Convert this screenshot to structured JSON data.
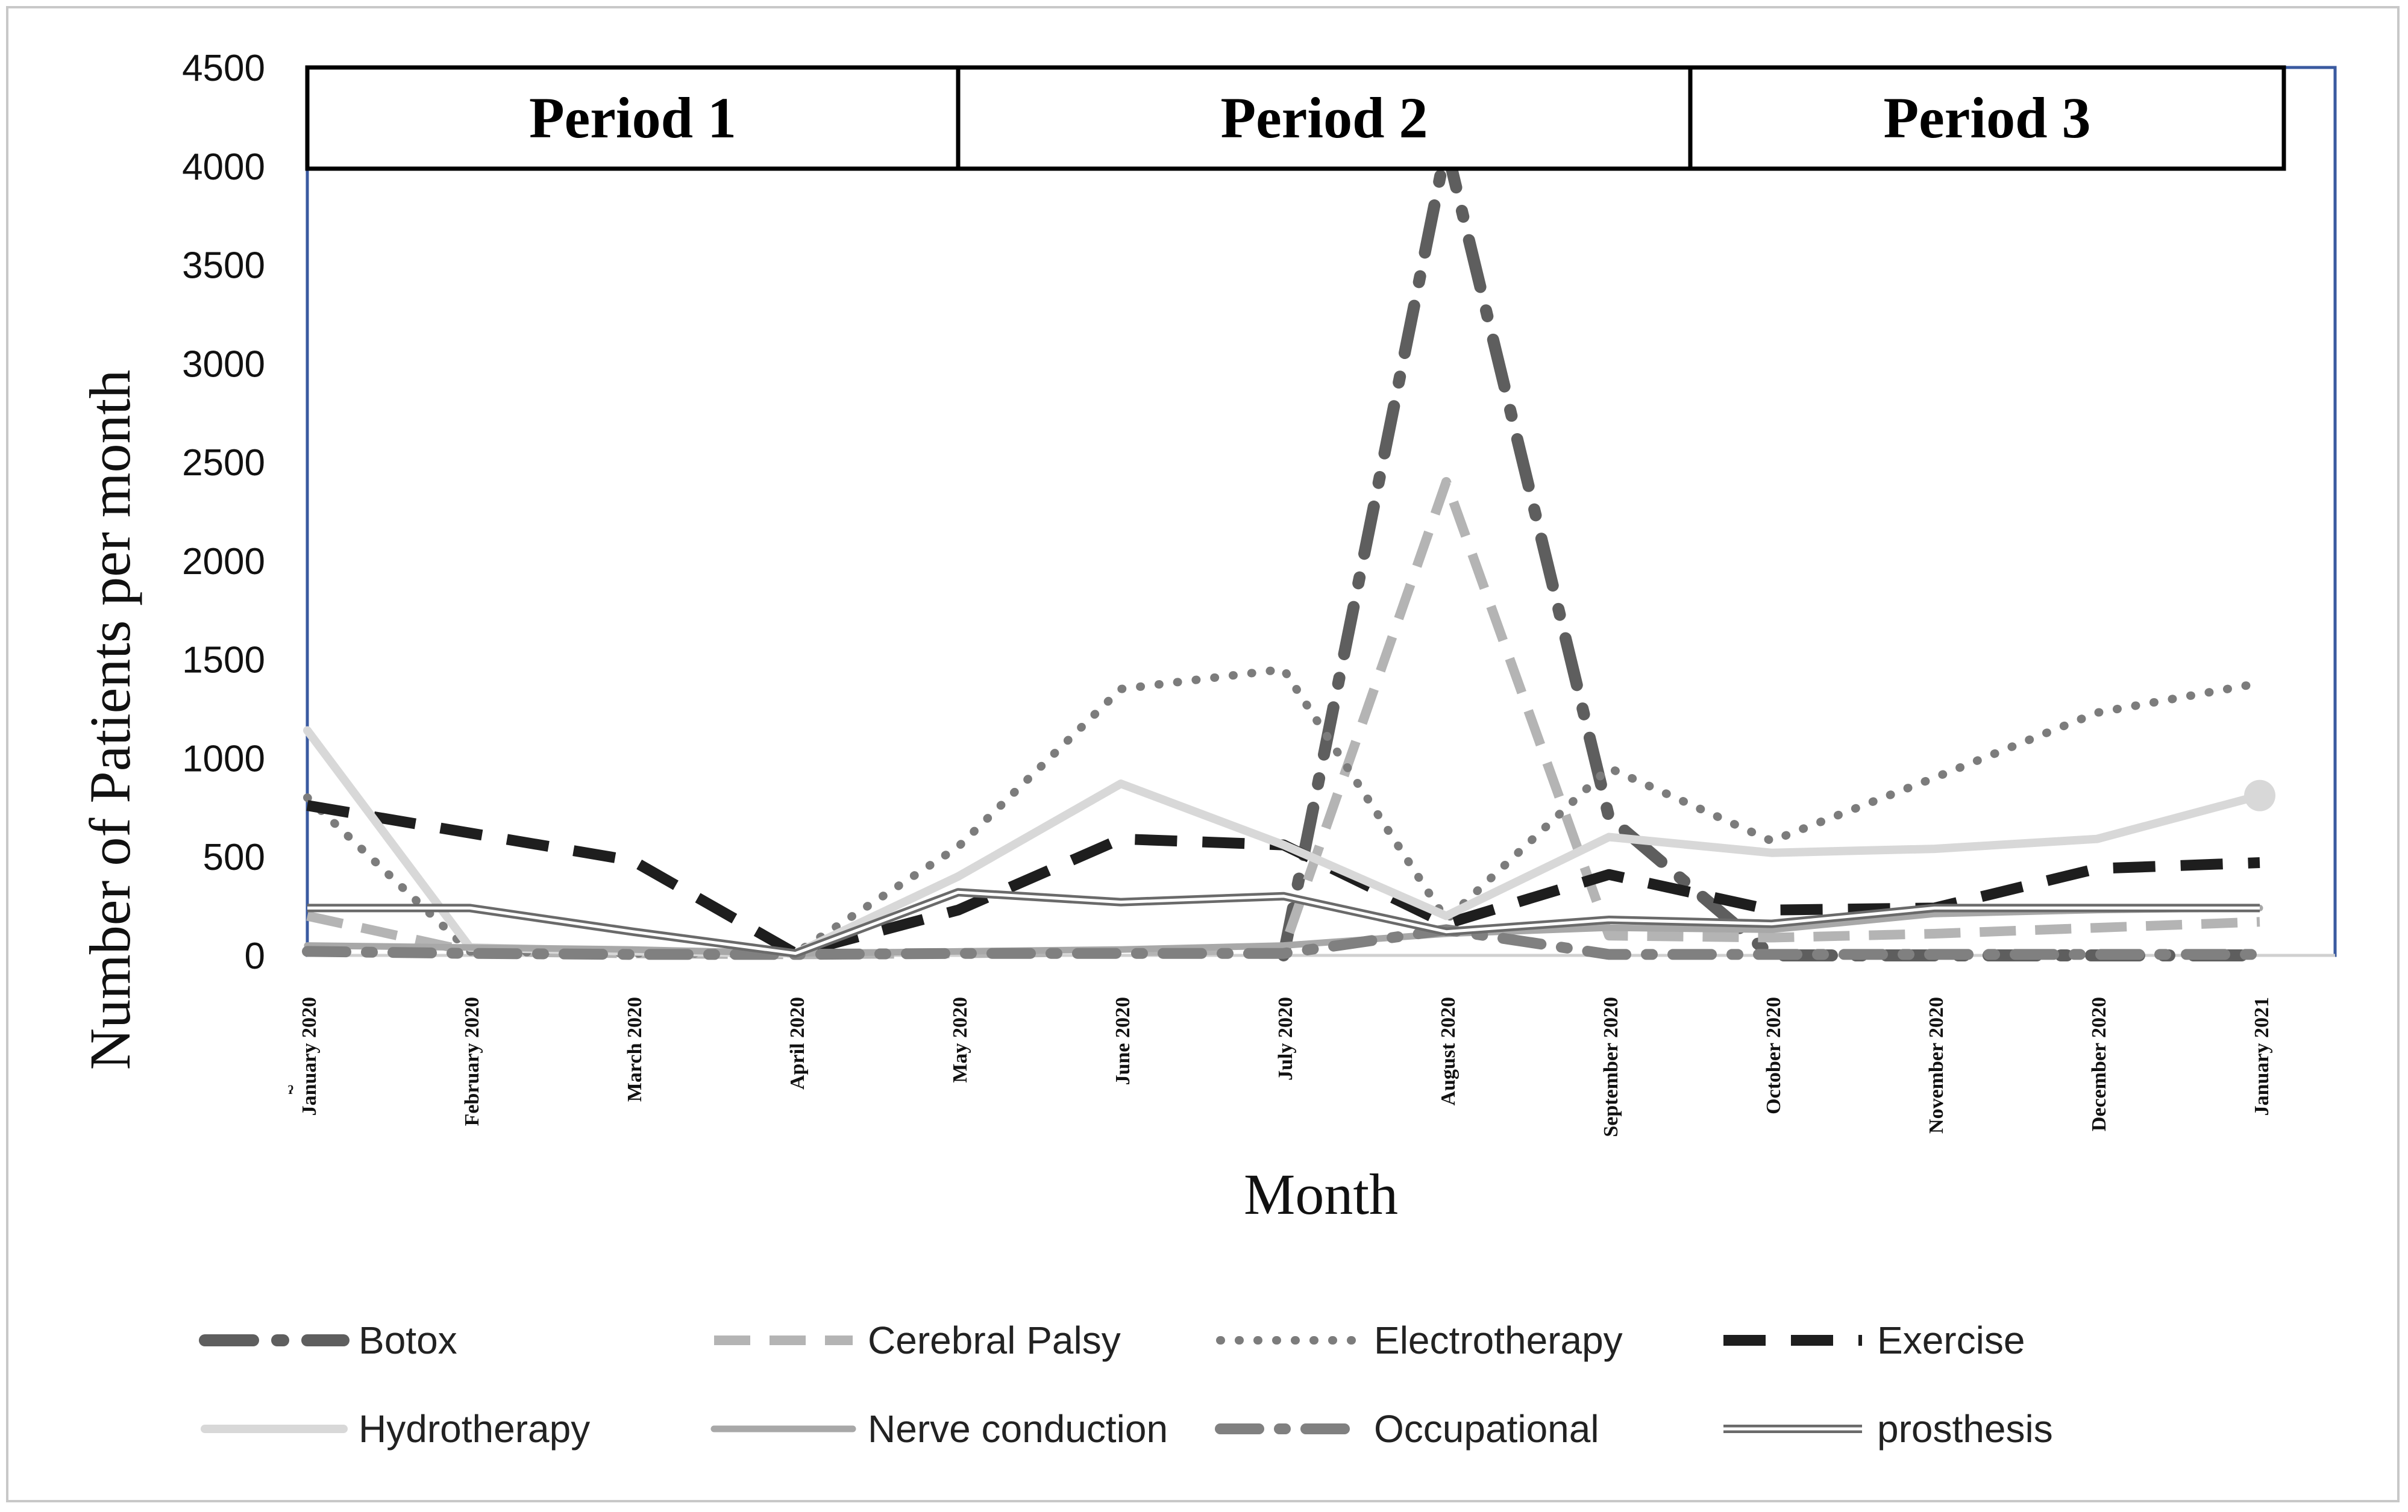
{
  "chart_data": {
    "type": "line",
    "title": "",
    "xlabel": "Month",
    "ylabel": "Number of Patients per month",
    "ylim": [
      0,
      4500
    ],
    "yticks": [
      "0",
      "500",
      "1000",
      "1500",
      "2000",
      "2500",
      "3000",
      "3500",
      "4000",
      "4500"
    ],
    "ytick_values": [
      0,
      500,
      1000,
      1500,
      2000,
      2500,
      3000,
      3500,
      4000,
      4500
    ],
    "categories": [
      "January 2020",
      "February 2020",
      "March 2020",
      "April 2020",
      "May 2020",
      "June 2020",
      "July 2020",
      "August 2020",
      "September 2020",
      "October 2020",
      "November 2020",
      "December 2020",
      "January 2021"
    ],
    "stray_mark": "ˀ",
    "periods": [
      {
        "label": "Period 1",
        "start": 0,
        "end": 4
      },
      {
        "label": "Period 2",
        "start": 4,
        "end": 8.5
      },
      {
        "label": "Period 3",
        "start": 8.5,
        "end": 12.5
      }
    ],
    "series": [
      {
        "name": "Botox",
        "style": "dashdot-dark",
        "values": [
          null,
          null,
          null,
          null,
          null,
          null,
          0,
          4100,
          700,
          0,
          0,
          0,
          0
        ]
      },
      {
        "name": "Cerebral Palsy",
        "style": "dash-light",
        "values": [
          200,
          20,
          10,
          5,
          10,
          20,
          30,
          2400,
          100,
          90,
          110,
          140,
          170
        ]
      },
      {
        "name": "Electrotherapy",
        "style": "dot",
        "values": [
          800,
          20,
          10,
          10,
          550,
          1350,
          1450,
          180,
          950,
          580,
          900,
          1230,
          1380
        ]
      },
      {
        "name": "Exercise",
        "style": "dash-black",
        "values": [
          760,
          620,
          480,
          10,
          230,
          590,
          560,
          160,
          410,
          230,
          240,
          440,
          470
        ]
      },
      {
        "name": "Hydrotherapy",
        "style": "solid-light",
        "values": [
          1140,
          40,
          20,
          10,
          400,
          870,
          560,
          200,
          600,
          520,
          540,
          590,
          810
        ]
      },
      {
        "name": "Nerve conduction",
        "style": "solid-mid",
        "values": [
          50,
          40,
          30,
          10,
          20,
          30,
          50,
          110,
          140,
          130,
          210,
          230,
          240
        ]
      },
      {
        "name": "Occupational",
        "style": "dashdot-mid",
        "values": [
          20,
          10,
          5,
          5,
          10,
          10,
          10,
          130,
          5,
          5,
          5,
          5,
          5
        ]
      },
      {
        "name": "prosthesis",
        "style": "double",
        "values": [
          240,
          240,
          120,
          10,
          320,
          270,
          300,
          120,
          180,
          160,
          240,
          240,
          240
        ]
      }
    ],
    "legend": [
      "Botox",
      "Cerebral Palsy",
      "Electrotherapy",
      "Exercise",
      "Hydrotherapy",
      "Nerve conduction",
      "Occupational",
      "prosthesis"
    ],
    "grid": false
  }
}
